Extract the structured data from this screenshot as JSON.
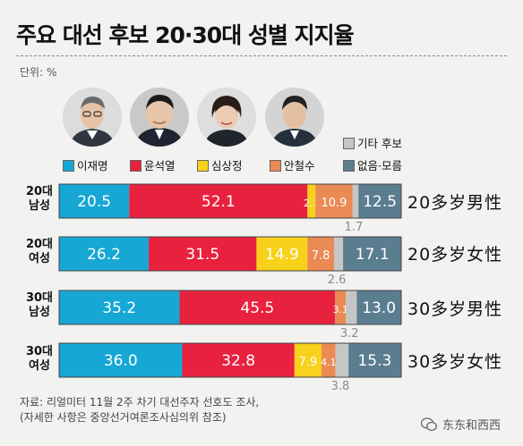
{
  "title": "주요 대선 후보 20·30대 성별 지지율",
  "unit_label": "단위: %",
  "colors": {
    "lee": "#16a7d4",
    "yoon": "#e8213f",
    "sim": "#f8d11b",
    "ahn": "#ea8a54",
    "other": "#c6c6c6",
    "none": "#5b7d90"
  },
  "candidates": [
    {
      "name": "이재명",
      "icon": "portrait-lee"
    },
    {
      "name": "윤석열",
      "icon": "portrait-yoon"
    },
    {
      "name": "심상정",
      "icon": "portrait-sim"
    },
    {
      "name": "안철수",
      "icon": "portrait-ahn"
    }
  ],
  "legend": {
    "lee": "이재명",
    "yoon": "윤석열",
    "sim": "심상정",
    "ahn": "안철수",
    "other": "기타 후보",
    "none": "없음·모름"
  },
  "rows": [
    {
      "label_line1": "20대",
      "label_line2": "남성",
      "annotation": "20多岁男性"
    },
    {
      "label_line1": "20대",
      "label_line2": "여성",
      "annotation": "20多岁女性"
    },
    {
      "label_line1": "30대",
      "label_line2": "남성",
      "annotation": "30多岁男性"
    },
    {
      "label_line1": "30대",
      "label_line2": "여성",
      "annotation": "30多岁女性"
    }
  ],
  "chart_data": {
    "type": "bar",
    "orientation": "horizontal",
    "stacked": true,
    "categories": [
      "20대 남성",
      "20대 여성",
      "30대 남성",
      "30대 여성"
    ],
    "series": [
      {
        "name": "이재명",
        "values": [
          20.5,
          26.2,
          35.2,
          36.0
        ],
        "labels": [
          "20.5",
          "26.2",
          "35.2",
          "36.0"
        ]
      },
      {
        "name": "윤석열",
        "values": [
          52.1,
          31.5,
          45.5,
          32.8
        ],
        "labels": [
          "52.1",
          "31.5",
          "45.5",
          "32.8"
        ]
      },
      {
        "name": "심상정",
        "values": [
          2.3,
          14.9,
          0.0,
          7.9
        ],
        "labels": [
          "2.3",
          "14.9",
          "",
          "7.9"
        ]
      },
      {
        "name": "안철수",
        "values": [
          10.9,
          7.8,
          3.1,
          4.1
        ],
        "labels": [
          "10.9",
          "7.8",
          "3.1",
          "4.1"
        ]
      },
      {
        "name": "기타 후보",
        "values": [
          1.7,
          2.6,
          3.2,
          3.8
        ],
        "labels": [
          "1.7",
          "2.6",
          "3.2",
          "3.8"
        ]
      },
      {
        "name": "없음·모름",
        "values": [
          12.5,
          17.1,
          13.0,
          15.3
        ],
        "labels": [
          "12.5",
          "17.1",
          "13.0",
          "15.3"
        ]
      }
    ],
    "xlim": [
      0,
      100
    ],
    "legend_position": "top"
  },
  "source_line1": "자료: 리얼미터 11월 2주 차기 대선주자 선호도 조사,",
  "source_line2": "(자세한 사항은 중앙선거여론조사심의위 참조)",
  "watermark": "东东和西西"
}
